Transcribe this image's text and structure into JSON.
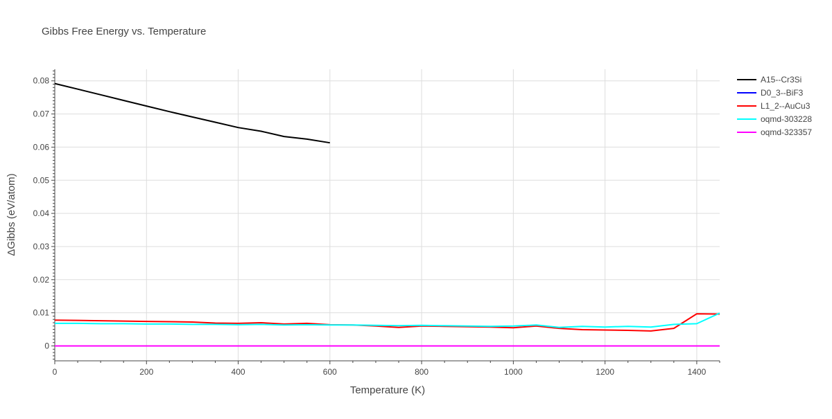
{
  "chart_data": {
    "type": "line",
    "title": "Gibbs Free Energy vs. Temperature",
    "xlabel": "Temperature (K)",
    "ylabel": "ΔGibbs (eV/atom)",
    "xlim": [
      0,
      1450
    ],
    "ylim": [
      -0.0045,
      0.0835
    ],
    "xticks": [
      0,
      200,
      400,
      600,
      800,
      1000,
      1200,
      1400
    ],
    "yticks": [
      0,
      0.01,
      0.02,
      0.03,
      0.04,
      0.05,
      0.06,
      0.07,
      0.08
    ],
    "ytick_labels": [
      "0",
      "0.01",
      "0.02",
      "0.03",
      "0.04",
      "0.05",
      "0.06",
      "0.07",
      "0.08"
    ],
    "grid": true,
    "legend_position": "top-right",
    "series": [
      {
        "name": "A15--Cr3Si",
        "color": "#000000",
        "x": [
          0,
          50,
          100,
          150,
          200,
          250,
          300,
          350,
          400,
          450,
          500,
          550,
          600
        ],
        "y": [
          0.0792,
          0.0775,
          0.0758,
          0.0741,
          0.0724,
          0.0707,
          0.0691,
          0.0675,
          0.0659,
          0.0648,
          0.0632,
          0.0624,
          0.0613
        ]
      },
      {
        "name": "D0_3--BiF3",
        "color": "#0000ff",
        "x": [
          0,
          1450
        ],
        "y": [
          0,
          0
        ]
      },
      {
        "name": "L1_2--AuCu3",
        "color": "#ff0000",
        "x": [
          0,
          50,
          100,
          150,
          200,
          250,
          300,
          350,
          400,
          450,
          500,
          550,
          600,
          650,
          700,
          750,
          800,
          850,
          900,
          950,
          1000,
          1050,
          1100,
          1150,
          1200,
          1250,
          1300,
          1350,
          1400,
          1450
        ],
        "y": [
          0.0078,
          0.0077,
          0.0076,
          0.0075,
          0.0074,
          0.0073,
          0.0072,
          0.0069,
          0.0068,
          0.007,
          0.0066,
          0.0068,
          0.0064,
          0.0063,
          0.006,
          0.0056,
          0.006,
          0.0059,
          0.0058,
          0.0057,
          0.0055,
          0.006,
          0.0053,
          0.0049,
          0.0048,
          0.0047,
          0.0045,
          0.0053,
          0.0097,
          0.0096
        ]
      },
      {
        "name": "oqmd-303228",
        "color": "#00ffff",
        "x": [
          0,
          50,
          100,
          150,
          200,
          250,
          300,
          350,
          400,
          450,
          500,
          550,
          600,
          650,
          700,
          750,
          800,
          850,
          900,
          950,
          1000,
          1050,
          1100,
          1150,
          1200,
          1250,
          1300,
          1350,
          1400,
          1450
        ],
        "y": [
          0.0068,
          0.0068,
          0.0067,
          0.0067,
          0.0066,
          0.0066,
          0.0065,
          0.0065,
          0.0064,
          0.0065,
          0.0063,
          0.0064,
          0.0063,
          0.0063,
          0.0062,
          0.0061,
          0.0062,
          0.0061,
          0.006,
          0.0059,
          0.006,
          0.0063,
          0.0056,
          0.0059,
          0.0057,
          0.0059,
          0.0057,
          0.0065,
          0.0067,
          0.0099
        ]
      },
      {
        "name": "oqmd-323357",
        "color": "#ff00ff",
        "x": [
          0,
          1450
        ],
        "y": [
          0,
          0
        ]
      }
    ]
  }
}
